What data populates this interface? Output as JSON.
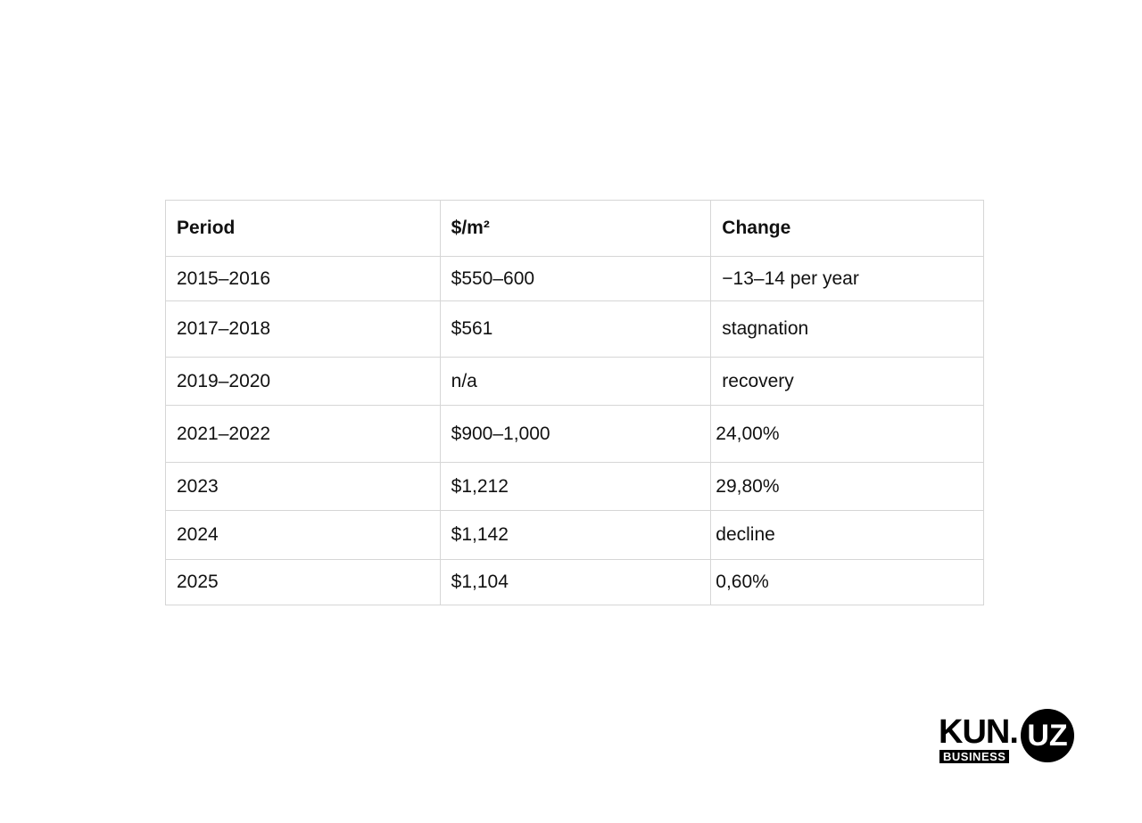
{
  "table": {
    "header": [
      "Period",
      "$/m²",
      "Change"
    ],
    "rows": [
      [
        "2015–2016",
        "$550–600",
        "−13–14 per year"
      ],
      [
        "2017–2018",
        "$561",
        "stagnation"
      ],
      [
        "2019–2020",
        "n/a",
        "recovery"
      ],
      [
        "2021–2022",
        "$900–1,000",
        "24,00%"
      ],
      [
        "2023",
        "$1,212",
        "29,80%"
      ],
      [
        "2024",
        "$1,142",
        "decline"
      ],
      [
        "2025",
        "$1,104",
        "0,60%"
      ]
    ]
  },
  "logo": {
    "name": "KUN",
    "domain": "UZ",
    "subtitle": "BUSINESS"
  }
}
